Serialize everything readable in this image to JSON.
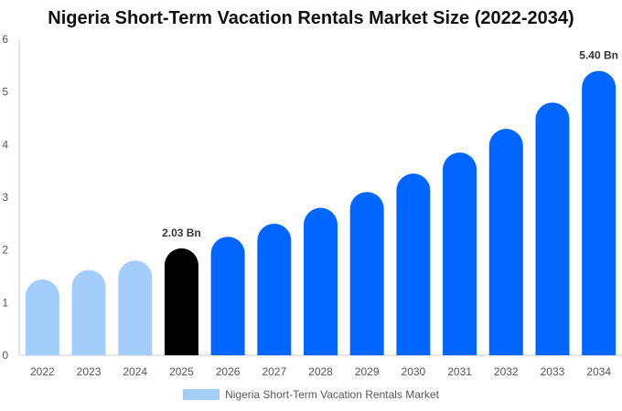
{
  "chart_data": {
    "type": "bar",
    "title": "Nigeria Short-Term Vacation Rentals Market Size (2022-2034)",
    "xlabel": "",
    "ylabel": "",
    "categories": [
      "2022",
      "2023",
      "2024",
      "2025",
      "2026",
      "2027",
      "2028",
      "2029",
      "2030",
      "2031",
      "2032",
      "2033",
      "2034"
    ],
    "series": [
      {
        "name": "Nigeria Short-Term Vacation Rentals Market",
        "values": [
          1.44,
          1.62,
          1.8,
          2.03,
          2.25,
          2.5,
          2.8,
          3.1,
          3.45,
          3.85,
          4.3,
          4.8,
          5.4
        ]
      }
    ],
    "data_labels": [
      {
        "category": "2025",
        "text": "2.03 Bn"
      },
      {
        "category": "2034",
        "text": "5.40 Bn"
      }
    ],
    "ylim": [
      0,
      6
    ],
    "yticks": [
      0,
      1,
      2,
      3,
      4,
      5,
      6
    ],
    "grid": false,
    "legend_position": "bottom",
    "colors": {
      "historical": "#a3cdfb",
      "current": "#000000",
      "forecast": "#0066ff",
      "legend_swatch": "#a3cdfb"
    },
    "period_by_category": {
      "2022": "historical",
      "2023": "historical",
      "2024": "historical",
      "2025": "current",
      "2026": "forecast",
      "2027": "forecast",
      "2028": "forecast",
      "2029": "forecast",
      "2030": "forecast",
      "2031": "forecast",
      "2032": "forecast",
      "2033": "forecast",
      "2034": "forecast"
    }
  }
}
